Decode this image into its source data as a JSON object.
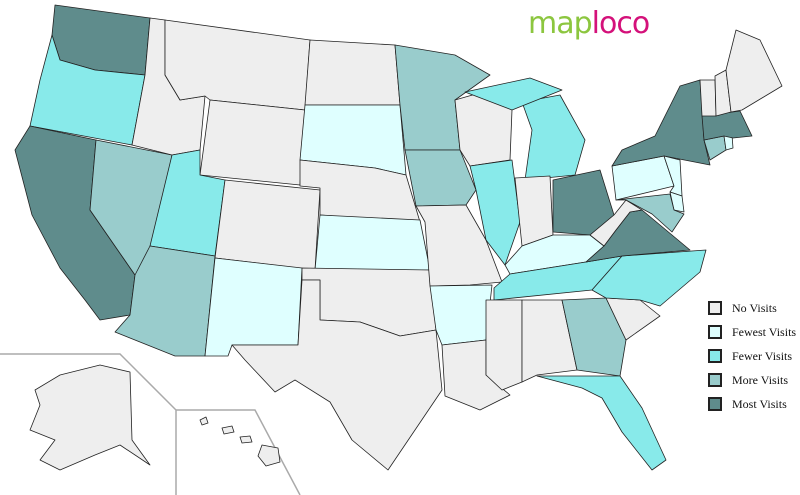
{
  "logo": {
    "part1": "map",
    "part2": "loco",
    "colors": {
      "part1": "#8cc63f",
      "part2": "#d4117a"
    }
  },
  "legend": [
    {
      "key": "none",
      "label": "No Visits",
      "color": "#eeeeee"
    },
    {
      "key": "fewest",
      "label": "Fewest Visits",
      "color": "#dfffff"
    },
    {
      "key": "fewer",
      "label": "Fewer Visits",
      "color": "#88eaea"
    },
    {
      "key": "more",
      "label": "More Visits",
      "color": "#99cccc"
    },
    {
      "key": "most",
      "label": "Most Visits",
      "color": "#5f8c8c"
    }
  ],
  "state_visits": {
    "WA": "most",
    "OR": "fewer",
    "CA": "most",
    "NV": "more",
    "ID": "none",
    "MT": "none",
    "WY": "none",
    "UT": "fewer",
    "CO": "none",
    "AZ": "more",
    "NM": "fewest",
    "ND": "none",
    "SD": "fewest",
    "NE": "none",
    "KS": "fewest",
    "OK": "none",
    "TX": "none",
    "MN": "more",
    "IA": "more",
    "MO": "none",
    "AR": "fewest",
    "LA": "none",
    "WI": "none",
    "IL": "fewer",
    "MI": "fewer",
    "IN": "none",
    "OH": "most",
    "KY": "fewest",
    "TN": "fewer",
    "MS": "none",
    "AL": "none",
    "GA": "more",
    "FL": "fewer",
    "SC": "none",
    "NC": "fewer",
    "VA": "most",
    "WV": "none",
    "PA": "fewest",
    "NY": "most",
    "NJ": "fewest",
    "DE": "fewest",
    "MD": "more",
    "CT": "more",
    "RI": "fewest",
    "MA": "most",
    "VT": "none",
    "NH": "none",
    "ME": "none",
    "AK": "none",
    "HI": "none"
  }
}
